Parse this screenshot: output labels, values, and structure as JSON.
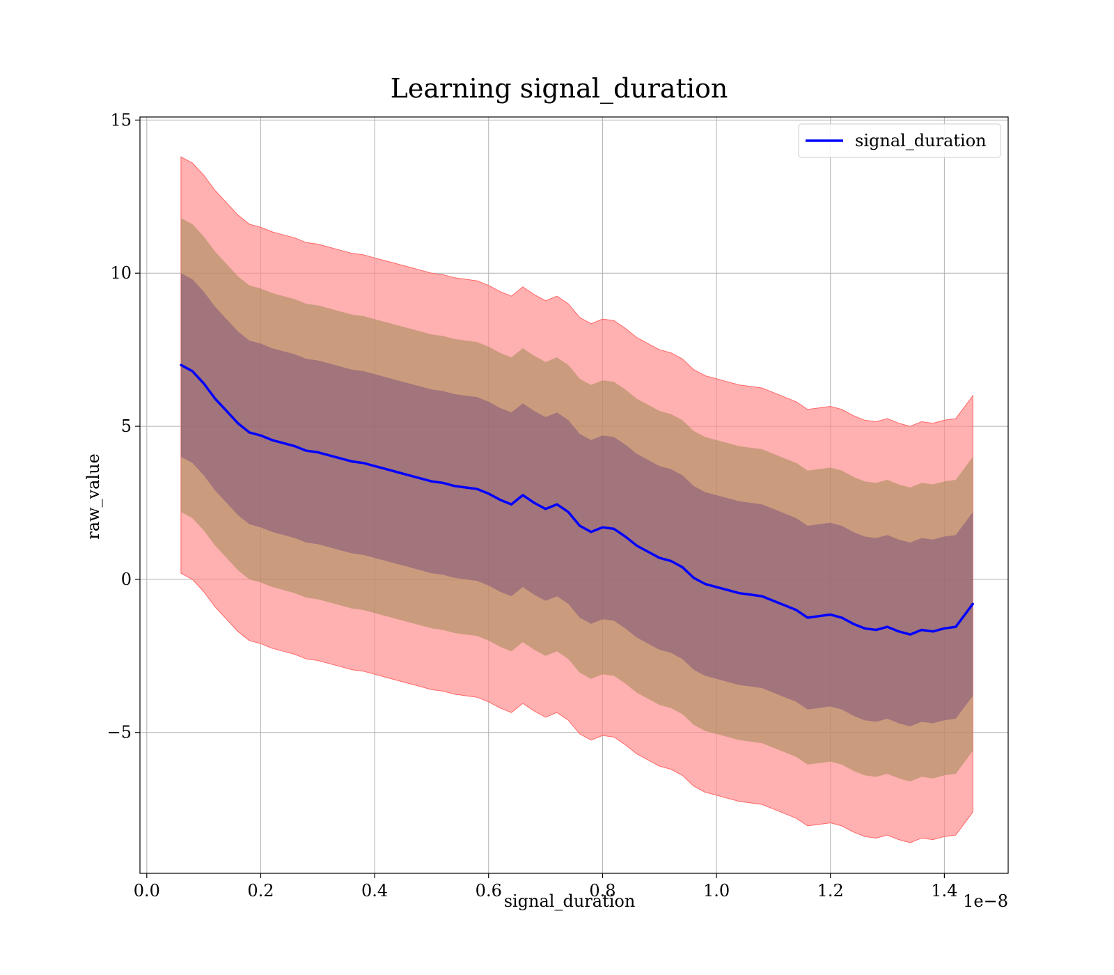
{
  "chart_data": {
    "type": "line",
    "title": "Learning signal_duration",
    "xlabel": "signal_duration",
    "ylabel": "raw_value",
    "x_scale_label": "1e−8",
    "xlim": [
      -0.012,
      1.512
    ],
    "ylim": [
      -9.6,
      15.1
    ],
    "x_ticks": [
      0.0,
      0.2,
      0.4,
      0.6,
      0.8,
      1.0,
      1.2,
      1.4
    ],
    "x_tick_labels": [
      "0.0",
      "0.2",
      "0.4",
      "0.6",
      "0.8",
      "1.0",
      "1.2",
      "1.4"
    ],
    "y_ticks": [
      -5,
      0,
      5,
      10,
      15
    ],
    "y_tick_labels": [
      "−5",
      "0",
      "5",
      "10",
      "15"
    ],
    "grid": true,
    "legend_position": "top-right",
    "colors": {
      "line": "#0000ff",
      "band_outer": "#ff8a8a",
      "band_middle": "#a08a55",
      "band_inner": "#7a4e7a"
    },
    "series": [
      {
        "name": "signal_duration",
        "x": [
          0.06,
          0.08,
          0.1,
          0.12,
          0.14,
          0.16,
          0.18,
          0.2,
          0.22,
          0.24,
          0.26,
          0.28,
          0.3,
          0.32,
          0.34,
          0.36,
          0.38,
          0.4,
          0.42,
          0.44,
          0.46,
          0.48,
          0.5,
          0.52,
          0.54,
          0.56,
          0.58,
          0.6,
          0.62,
          0.64,
          0.66,
          0.68,
          0.7,
          0.72,
          0.74,
          0.76,
          0.78,
          0.8,
          0.82,
          0.84,
          0.86,
          0.88,
          0.9,
          0.92,
          0.94,
          0.96,
          0.98,
          1.0,
          1.02,
          1.04,
          1.06,
          1.08,
          1.1,
          1.12,
          1.14,
          1.16,
          1.18,
          1.2,
          1.22,
          1.24,
          1.26,
          1.28,
          1.3,
          1.32,
          1.34,
          1.36,
          1.38,
          1.4,
          1.42,
          1.45
        ],
        "y": [
          7.0,
          6.8,
          6.4,
          5.9,
          5.5,
          5.1,
          4.8,
          4.7,
          4.55,
          4.45,
          4.35,
          4.2,
          4.15,
          4.05,
          3.95,
          3.85,
          3.8,
          3.7,
          3.6,
          3.5,
          3.4,
          3.3,
          3.2,
          3.15,
          3.05,
          3.0,
          2.95,
          2.8,
          2.6,
          2.45,
          2.75,
          2.5,
          2.3,
          2.45,
          2.2,
          1.75,
          1.55,
          1.7,
          1.65,
          1.4,
          1.1,
          0.9,
          0.7,
          0.6,
          0.4,
          0.05,
          -0.15,
          -0.25,
          -0.35,
          -0.45,
          -0.5,
          -0.55,
          -0.7,
          -0.85,
          -1.0,
          -1.25,
          -1.2,
          -1.15,
          -1.25,
          -1.45,
          -1.6,
          -1.65,
          -1.55,
          -1.7,
          -1.8,
          -1.65,
          -1.7,
          -1.6,
          -1.55,
          -0.8
        ],
        "band_inner_halfwidth": 3.0,
        "band_middle_halfwidth": 4.8,
        "band_outer_halfwidth": 6.8
      }
    ]
  }
}
